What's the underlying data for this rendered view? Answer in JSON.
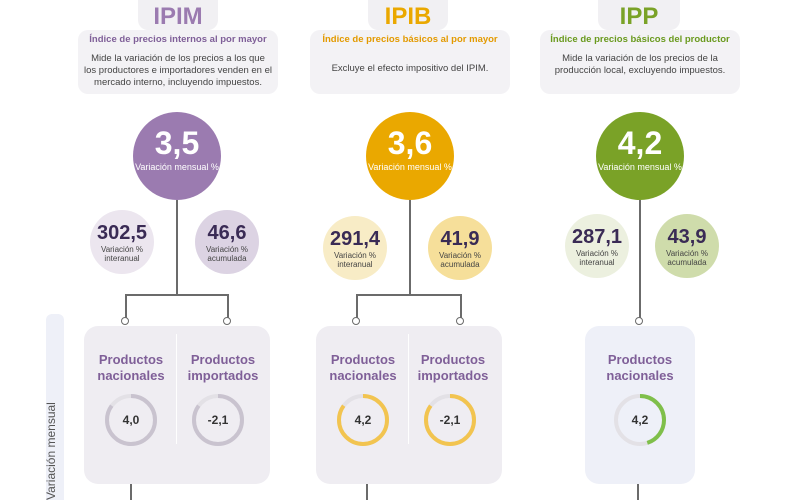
{
  "colors": {
    "ipim": "#9b7bb0",
    "ipib": "#eaa800",
    "ipp": "#7aa227",
    "ipim_light": "#ece6ef",
    "ipib_light": "#f8ecc6",
    "ipp_light": "#ecf0df"
  },
  "side_label": "Variación mensual",
  "sections": [
    {
      "id": "ipim",
      "title": "IPIM",
      "subtitle": "Índice de precios internos al por mayor",
      "description": "Mide la variación de los precios a los que los productores e importadores venden en el mercado interno, incluyendo impuestos.",
      "main": {
        "value": "3,5",
        "label": "Variación mensual %"
      },
      "interanual": {
        "value": "302,5",
        "label": "Variación % interanual"
      },
      "acumulada": {
        "value": "46,6",
        "label": "Variación % acumulada"
      },
      "products": [
        {
          "title": "Productos nacionales",
          "value": "4,0",
          "progress": 0.85
        },
        {
          "title": "Productos importados",
          "value": "-2,1",
          "progress": 0.85
        }
      ]
    },
    {
      "id": "ipib",
      "title": "IPIB",
      "subtitle": "Índice de precios básicos al por mayor",
      "description": "Excluye el efecto impositivo del IPIM.",
      "main": {
        "value": "3,6",
        "label": "Variación mensual %"
      },
      "interanual": {
        "value": "291,4",
        "label": "Variación % interanual"
      },
      "acumulada": {
        "value": "41,9",
        "label": "Variación % acumulada"
      },
      "products": [
        {
          "title": "Productos nacionales",
          "value": "4,2",
          "progress": 0.85
        },
        {
          "title": "Productos importados",
          "value": "-2,1",
          "progress": 0.85
        }
      ]
    },
    {
      "id": "ipp",
      "title": "IPP",
      "subtitle": "Índice de precios básicos del productor",
      "description": "Mide la variación de los precios de la producción local, excluyendo impuestos.",
      "main": {
        "value": "4,2",
        "label": "Variación mensual %"
      },
      "interanual": {
        "value": "287,1",
        "label": "Variación % interanual"
      },
      "acumulada": {
        "value": "43,9",
        "label": "Variación % acumulada"
      },
      "products": [
        {
          "title": "Productos nacionales",
          "value": "4,2",
          "progress": 0.45
        }
      ]
    }
  ]
}
